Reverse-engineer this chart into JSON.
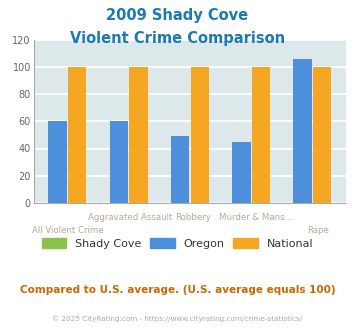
{
  "title_line1": "2009 Shady Cove",
  "title_line2": "Violent Crime Comparison",
  "shady_cove": [
    0,
    0,
    0,
    0,
    0
  ],
  "oregon": [
    60,
    60,
    49,
    45,
    106
  ],
  "national": [
    100,
    100,
    100,
    100,
    100
  ],
  "color_shady_cove": "#8bc34a",
  "color_oregon": "#4d8fdb",
  "color_national": "#f5a623",
  "color_title": "#1a7ab5",
  "color_bg_chart": "#dce8ea",
  "color_bg_fig": "#ffffff",
  "color_grid": "#ffffff",
  "color_axis_labels_top": "#b8a898",
  "color_axis_labels_bottom": "#b8a898",
  "color_comparison_text": "#cc6600",
  "color_copyright": "#aaaaaa",
  "ylim": [
    0,
    120
  ],
  "yticks": [
    0,
    20,
    40,
    60,
    80,
    100,
    120
  ],
  "top_labels": [
    "",
    "Aggravated Assault",
    "Robbery",
    "Murder & Mans...",
    ""
  ],
  "bottom_labels": [
    "All Violent Crime",
    "",
    "",
    "",
    "Rape"
  ],
  "footnote": "Compared to U.S. average. (U.S. average equals 100)",
  "copyright": "© 2025 CityRating.com - https://www.cityrating.com/crime-statistics/",
  "legend_labels": [
    "Shady Cove",
    "Oregon",
    "National"
  ]
}
